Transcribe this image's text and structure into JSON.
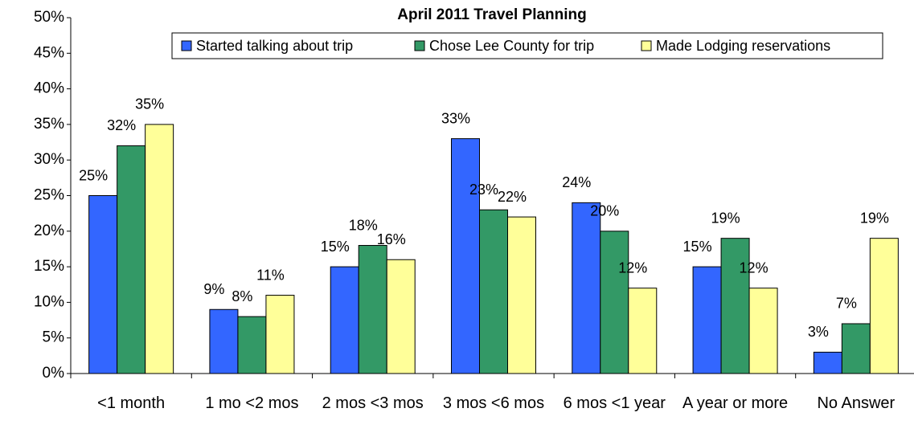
{
  "chart_data": {
    "type": "bar",
    "title": "April 2011 Travel Planning",
    "categories": [
      "<1 month",
      "1 mo <2 mos",
      "2 mos <3 mos",
      "3 mos <6 mos",
      "6 mos <1 year",
      "A year or more",
      "No Answer"
    ],
    "series": [
      {
        "name": "Started talking about trip",
        "color": "#3366ff",
        "values": [
          25,
          9,
          15,
          33,
          24,
          15,
          3
        ],
        "value_labels": [
          "25%",
          "9%",
          "15%",
          "33%",
          "24%",
          "15%",
          "3%"
        ]
      },
      {
        "name": "Chose Lee County for trip",
        "color": "#339966",
        "values": [
          32,
          8,
          18,
          23,
          20,
          19,
          7
        ],
        "value_labels": [
          "32%",
          "8%",
          "18%",
          "23%",
          "20%",
          "19%",
          "7%"
        ]
      },
      {
        "name": "Made Lodging reservations",
        "color": "#ffff99",
        "values": [
          35,
          11,
          16,
          22,
          12,
          12,
          19
        ],
        "value_labels": [
          "35%",
          "11%",
          "16%",
          "22%",
          "12%",
          "12%",
          "19%"
        ]
      }
    ],
    "ylim": [
      0,
      50
    ],
    "yticks": [
      {
        "value": 0,
        "label": "0%"
      },
      {
        "value": 5,
        "label": "5%"
      },
      {
        "value": 10,
        "label": "10%"
      },
      {
        "value": 15,
        "label": "15%"
      },
      {
        "value": 20,
        "label": "20%"
      },
      {
        "value": 25,
        "label": "25%"
      },
      {
        "value": 30,
        "label": "30%"
      },
      {
        "value": 35,
        "label": "35%"
      },
      {
        "value": 40,
        "label": "40%"
      },
      {
        "value": 45,
        "label": "45%"
      },
      {
        "value": 50,
        "label": "50%"
      }
    ],
    "grid": false,
    "legend": "top"
  }
}
